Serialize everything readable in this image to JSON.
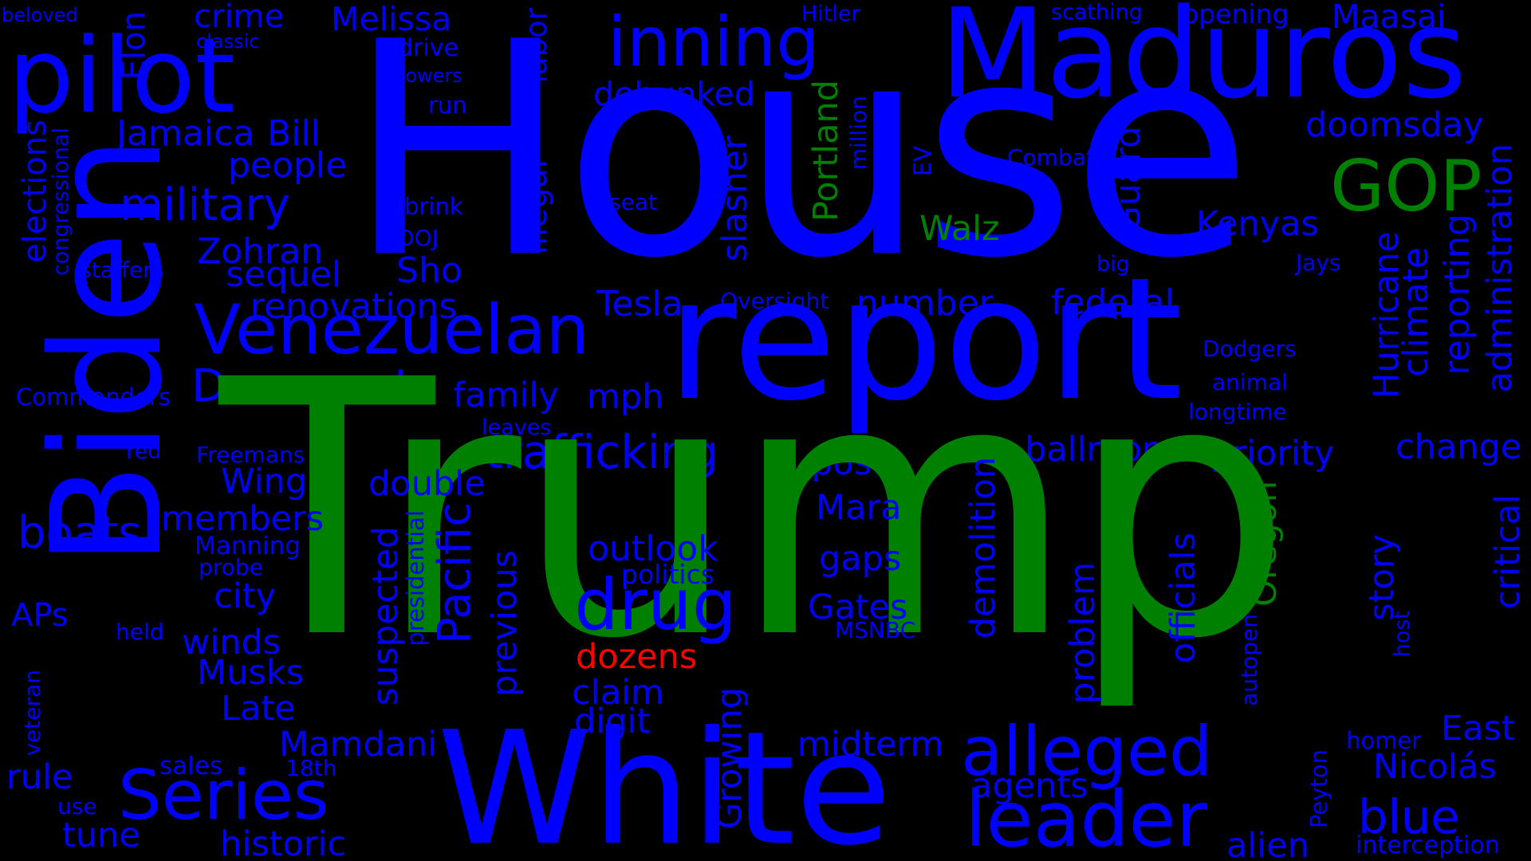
{
  "colors": {
    "background": "#000000",
    "blue": "#0000ff",
    "green": "#008000",
    "red": "#ff0000"
  },
  "words": {
    "beloved": "beloved",
    "elon": "Elon",
    "pilot": "pilot",
    "crime": "crime",
    "classic": "classic",
    "melissa": "Melissa",
    "drive": "drive",
    "powers": "powers",
    "labor": "labor",
    "inning": "inning",
    "hitler": "Hitler",
    "maduros": "Maduros",
    "scathing": "scathing",
    "opening": "opening",
    "maasai": "Maasai",
    "house": "House",
    "run": "run",
    "debunked": "debunked",
    "jamaica": "Jamaica",
    "bill": "Bill",
    "caveat": "caveat",
    "congressional": "congressional",
    "elections": "elections",
    "people": "people",
    "illegal": "illegal",
    "portland": "Portland",
    "million": "million",
    "ev": "EV",
    "combat": "Combat",
    "guard": "Guard",
    "doomsday": "doomsday",
    "administration": "administration",
    "gop": "GOP",
    "military": "military",
    "brink": "brink",
    "seat": "seat",
    "walz": "Walz",
    "kenyas": "Kenyas",
    "climate": "climate",
    "reporting": "reporting",
    "zohran": "Zohran",
    "doj": "DOJ",
    "slasher": "slasher",
    "staffers": "staffers",
    "sequel": "sequel",
    "sho": "Sho",
    "big": "big",
    "jays": "Jays",
    "hurricane": "Hurricane",
    "biden": "Biden",
    "tesla": "Tesla",
    "oversight": "Oversight",
    "number": "number",
    "federal": "federal",
    "renovations": "renovations",
    "venezuelan": "Venezuelan",
    "report": "report",
    "dodgers": "Dodgers",
    "animal": "animal",
    "democrat": "Democrat",
    "commanders": "Commanders",
    "family": "family",
    "mph": "mph",
    "longtime": "longtime",
    "leaves": "leaves",
    "trafficking": "trafficking",
    "red": "red",
    "freemans": "Freemans",
    "ballroom": "ballroom",
    "priority": "priority",
    "change": "change",
    "post": "post",
    "trump": "Trump",
    "wing": "Wing",
    "double": "double",
    "demolition": "demolition",
    "boats": "boats",
    "members": "members",
    "mara": "Mara",
    "oregon": "Oregon",
    "manning": "Manning",
    "outlook": "outlook",
    "probe": "probe",
    "suspected": "suspected",
    "critical": "critical",
    "gaps": "gaps",
    "politics": "politics",
    "city": "city",
    "presidential": "presidential",
    "story": "story",
    "apsp": "APs",
    "drug": "drug",
    "pacific": "Pacific",
    "gates": "Gates",
    "previous": "previous",
    "held": "held",
    "problem": "problem",
    "officials": "officials",
    "msnbc": "MSNBC",
    "winds": "winds",
    "host": "host",
    "dozens": "dozens",
    "autopen": "autopen",
    "musks": "Musks",
    "claim": "claim",
    "late": "Late",
    "digit": "digit",
    "alleged": "alleged",
    "growing": "Growing",
    "veteran": "veteran",
    "mamdani": "Mamdani",
    "midterm": "midterm",
    "east": "East",
    "homer": "homer",
    "sales": "sales",
    "eighteenth": "18th",
    "nicolas": "Nicolás",
    "rule": "rule",
    "series": "Series",
    "agents": "agents",
    "peyton": "Peyton",
    "white": "White",
    "use": "use",
    "leader": "leader",
    "blue": "blue",
    "tune": "tune",
    "historic": "historic",
    "alien": "alien",
    "interception": "interception"
  }
}
